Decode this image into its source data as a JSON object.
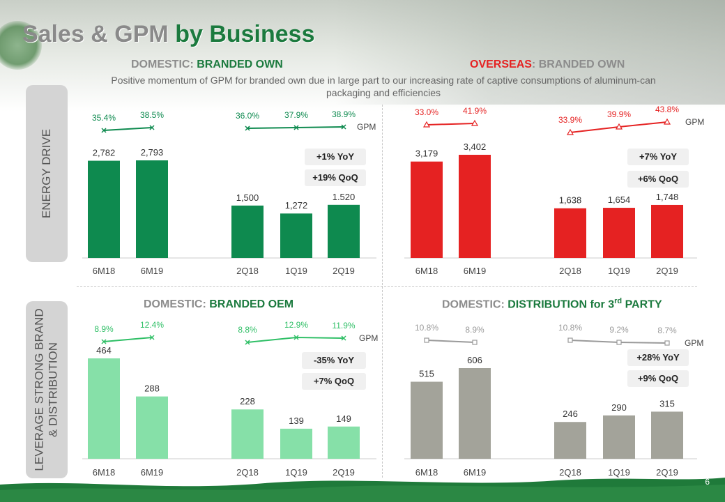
{
  "page": {
    "title_part1": "Sales & GPM",
    "title_part2": "by Business",
    "subtitle": "Positive momentum of GPM for branded own due in large part to our increasing rate of captive consumptions of aluminum-can packaging and efficiencies",
    "side_label_top": "ENERGY  DRIVE",
    "side_label_bottom_line1": "LEVERAGE STRONG BRAND",
    "side_label_bottom_line2": "& DISTRIBUTION",
    "page_number": "6"
  },
  "sections": {
    "dom_branded_own": {
      "prefix": "DOMESTIC:",
      "name": "BRANDED OWN"
    },
    "ovs_branded_own": {
      "prefix": "OVERSEAS",
      "sep": ":",
      "name": " BRANDED OWN"
    },
    "dom_branded_oem": {
      "prefix": "DOMESTIC:",
      "name": " BRANDED OEM"
    },
    "dom_distribution": {
      "prefix": "DOMESTIC:",
      "name": " DISTRIBUTION for 3",
      "sup": "rd",
      "suffix": " PARTY"
    }
  },
  "badges": {
    "q1_yoy": "+1% YoY",
    "q1_qoq": "+19% QoQ",
    "q2_yoy": "+7% YoY",
    "q2_qoq": "+6% QoQ",
    "q3_yoy": "-35% YoY",
    "q3_qoq": "+7% QoQ",
    "q4_yoy": "+28% YoY",
    "q4_qoq": "+9% QoQ"
  },
  "colors": {
    "dark_green": "#0e8a4f",
    "light_green": "#86e0a8",
    "red": "#e52222",
    "grey": "#a3a39a",
    "gpm_green": "#0e8a4f",
    "gpm_light_green": "#2fbf66",
    "gpm_grey": "#9a9a9a"
  },
  "chart_data": [
    {
      "id": "dom_branded_own",
      "type": "bar",
      "title": "DOMESTIC: BRANDED OWN",
      "categories": [
        "6M18",
        "6M19",
        "2Q18",
        "1Q19",
        "2Q19"
      ],
      "groups": [
        [
          "6M18",
          "6M19"
        ],
        [
          "2Q18",
          "1Q19",
          "2Q19"
        ]
      ],
      "values": [
        2782,
        2793,
        1500,
        1272,
        1520
      ],
      "value_labels": [
        "2,782",
        "2,793",
        "1,500",
        "1,272",
        "1.520"
      ],
      "gpm": [
        35.4,
        38.5,
        36.0,
        37.9,
        38.9
      ],
      "gpm_labels": [
        "35.4%",
        "38.5%",
        "36.0%",
        "37.9%",
        "38.9%"
      ],
      "gpm_series_name": "GPM",
      "ylim": [
        0,
        3000
      ]
    },
    {
      "id": "ovs_branded_own",
      "type": "bar",
      "title": "OVERSEAS: BRANDED OWN",
      "categories": [
        "6M18",
        "6M19",
        "2Q18",
        "1Q19",
        "2Q19"
      ],
      "groups": [
        [
          "6M18",
          "6M19"
        ],
        [
          "2Q18",
          "1Q19",
          "2Q19"
        ]
      ],
      "values": [
        3179,
        3402,
        1638,
        1654,
        1748
      ],
      "value_labels": [
        "3,179",
        "3,402",
        "1,638",
        "1,654",
        "1,748"
      ],
      "gpm": [
        33.0,
        41.9,
        33.9,
        39.9,
        43.8
      ],
      "gpm_labels": [
        "33.0%",
        "41.9%",
        "33.9%",
        "39.9%",
        "43.8%"
      ],
      "gpm_series_name": "GPM",
      "ylim": [
        0,
        3700
      ]
    },
    {
      "id": "dom_branded_oem",
      "type": "bar",
      "title": "DOMESTIC: BRANDED OEM",
      "categories": [
        "6M18",
        "6M19",
        "2Q18",
        "1Q19",
        "2Q19"
      ],
      "groups": [
        [
          "6M18",
          "6M19"
        ],
        [
          "2Q18",
          "1Q19",
          "2Q19"
        ]
      ],
      "values": [
        464,
        288,
        228,
        139,
        149
      ],
      "value_labels": [
        "464",
        "288",
        "228",
        "139",
        "149"
      ],
      "gpm": [
        8.9,
        12.4,
        8.8,
        12.9,
        11.9
      ],
      "gpm_labels": [
        "8.9%",
        "12.4%",
        "8.8%",
        "12.9%",
        "11.9%"
      ],
      "gpm_series_name": "GPM",
      "ylim": [
        0,
        500
      ]
    },
    {
      "id": "dom_distribution",
      "type": "bar",
      "title": "DOMESTIC: DISTRIBUTION for 3rd PARTY",
      "categories": [
        "6M18",
        "6M19",
        "2Q18",
        "1Q19",
        "2Q19"
      ],
      "groups": [
        [
          "6M18",
          "6M19"
        ],
        [
          "2Q18",
          "1Q19",
          "2Q19"
        ]
      ],
      "values": [
        515,
        606,
        246,
        290,
        315
      ],
      "value_labels": [
        "515",
        "606",
        "246",
        "290",
        "315"
      ],
      "gpm": [
        10.8,
        8.9,
        10.8,
        9.2,
        8.7
      ],
      "gpm_labels": [
        "10.8%",
        "8.9%",
        "10.8%",
        "9.2%",
        "8.7%"
      ],
      "gpm_series_name": "GPM",
      "ylim": [
        0,
        700
      ]
    }
  ]
}
